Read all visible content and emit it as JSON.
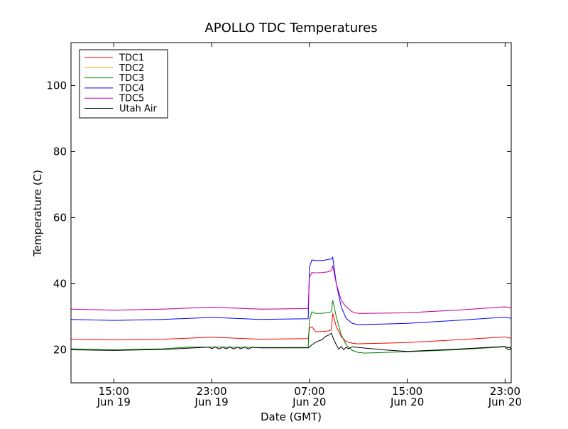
{
  "chart_data": {
    "type": "line",
    "title": "APOLLO TDC Temperatures",
    "xlabel": "Date (GMT)",
    "ylabel": "Temperature (C)",
    "xlim": [
      11.5,
      47.5
    ],
    "ylim": [
      10,
      113
    ],
    "grid": false,
    "legend_position": "top-left",
    "x_ticks": [
      {
        "value": 15,
        "time": "15:00",
        "date": "Jun 19"
      },
      {
        "value": 23,
        "time": "23:00",
        "date": "Jun 19"
      },
      {
        "value": 31,
        "time": "07:00",
        "date": "Jun 20"
      },
      {
        "value": 39,
        "time": "15:00",
        "date": "Jun 20"
      },
      {
        "value": 47,
        "time": "23:00",
        "date": "Jun 20"
      }
    ],
    "y_ticks": [
      20,
      40,
      60,
      80,
      100
    ],
    "x_units": "hours since Jun 19 00:00 GMT",
    "series": [
      {
        "name": "TDC1",
        "color": "#ff0000",
        "x": [
          11.5,
          15,
          19,
          23,
          27,
          30.9,
          31.0,
          31.2,
          31.5,
          32,
          32.5,
          32.8,
          32.9,
          33.2,
          33.6,
          34,
          34.5,
          35,
          35.5,
          37,
          39,
          43,
          47,
          47.5
        ],
        "y": [
          23.2,
          23.0,
          23.2,
          23.8,
          23.2,
          23.4,
          26.5,
          27.0,
          25.5,
          25.5,
          25.7,
          26.0,
          31.0,
          27.0,
          24.0,
          22.5,
          22.0,
          21.8,
          21.9,
          22.0,
          22.2,
          23.0,
          23.9,
          23.5
        ]
      },
      {
        "name": "TDC2",
        "color": "#ffa500",
        "x": [
          11.5,
          15,
          19,
          23,
          27,
          30.9,
          31.0,
          31.2,
          31.5,
          32,
          32.5,
          32.8,
          32.9,
          33.2,
          33.6,
          34,
          34.5,
          35,
          35.5,
          37,
          39,
          43,
          47,
          47.5
        ],
        "y": [
          32.3,
          32.0,
          32.3,
          32.9,
          32.3,
          32.5,
          42.0,
          43.4,
          43.3,
          43.4,
          43.6,
          44.0,
          45.5,
          40.0,
          35.0,
          33.0,
          31.5,
          31.0,
          31.0,
          31.1,
          31.2,
          32.0,
          33.0,
          32.7
        ]
      },
      {
        "name": "TDC3",
        "color": "#008000",
        "x": [
          11.5,
          15,
          19,
          21,
          23,
          27,
          30.9,
          31.0,
          31.2,
          31.5,
          32,
          32.5,
          32.8,
          32.9,
          33.2,
          33.6,
          34,
          34.5,
          35,
          35.5,
          37,
          39,
          43,
          47,
          47.5
        ],
        "y": [
          20.3,
          20.0,
          20.3,
          20.8,
          20.8,
          20.7,
          20.7,
          29.0,
          31.5,
          31.0,
          31.0,
          31.3,
          31.5,
          35.0,
          30.0,
          24.5,
          21.5,
          19.8,
          19.2,
          19.0,
          19.2,
          19.4,
          20.0,
          20.9,
          20.6
        ]
      },
      {
        "name": "TDC4",
        "color": "#0000ff",
        "x": [
          11.5,
          15,
          19,
          23,
          27,
          30.9,
          31.0,
          31.2,
          31.5,
          32,
          32.5,
          32.8,
          32.9,
          33.2,
          33.6,
          34,
          34.5,
          35,
          35.5,
          37,
          39,
          43,
          47,
          47.5
        ],
        "y": [
          29.2,
          28.9,
          29.2,
          29.8,
          29.2,
          29.4,
          45.0,
          47.2,
          47.0,
          47.0,
          47.3,
          47.5,
          48.0,
          40.0,
          33.0,
          29.5,
          28.0,
          27.6,
          27.7,
          27.8,
          28.0,
          28.9,
          29.9,
          29.5
        ]
      },
      {
        "name": "TDC5",
        "color": "#bf00bf",
        "x": [
          11.5,
          15,
          19,
          23,
          27,
          30.9,
          31.0,
          31.2,
          31.5,
          32,
          32.5,
          32.8,
          32.9,
          33.2,
          33.6,
          34,
          34.5,
          35,
          35.5,
          37,
          39,
          43,
          47,
          47.5
        ],
        "y": [
          32.3,
          32.0,
          32.3,
          32.9,
          32.3,
          32.5,
          42.0,
          43.4,
          43.3,
          43.4,
          43.6,
          44.0,
          45.5,
          40.0,
          35.0,
          33.0,
          31.5,
          31.0,
          31.0,
          31.1,
          31.2,
          32.0,
          33.0,
          32.7
        ]
      },
      {
        "name": "Utah Air",
        "color": "#000000",
        "x": [
          11.5,
          15,
          19,
          22.8,
          23.0,
          23.3,
          23.6,
          23.9,
          24.2,
          24.5,
          24.8,
          25.1,
          25.4,
          25.7,
          26.0,
          26.3,
          27,
          30.9,
          31.2,
          31.6,
          32,
          32.3,
          32.6,
          32.8,
          33.0,
          33.2,
          33.4,
          33.6,
          33.8,
          34.0,
          34.2,
          34.5,
          35,
          37,
          39,
          43,
          47,
          47.1,
          47.3,
          47.5
        ],
        "y": [
          20.0,
          19.8,
          20.1,
          20.8,
          20.3,
          20.9,
          20.2,
          20.8,
          20.3,
          20.9,
          20.2,
          20.8,
          20.3,
          20.9,
          20.2,
          20.8,
          20.6,
          20.6,
          21.5,
          22.5,
          23.0,
          24.0,
          24.5,
          25.0,
          23.0,
          21.5,
          20.2,
          21.0,
          20.0,
          20.8,
          20.3,
          20.9,
          20.7,
          20.0,
          19.5,
          20.2,
          21.0,
          20.4,
          20.8,
          20.3
        ]
      }
    ]
  }
}
